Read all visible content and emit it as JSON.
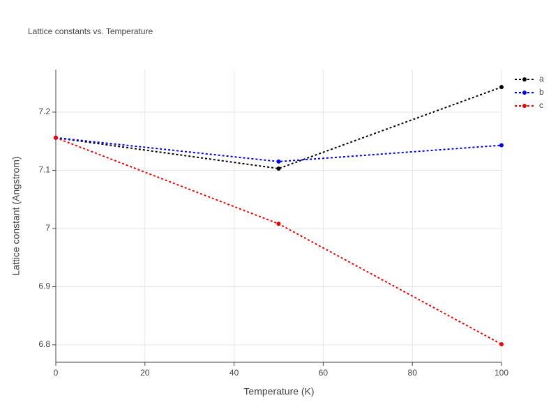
{
  "chart_data": {
    "type": "line",
    "title": "Lattice constants vs. Temperature",
    "x_label": "Temperature (K)",
    "y_label": "Lattice constant (Angstrom)",
    "x": [
      0,
      50,
      100
    ],
    "series": [
      {
        "name": "a",
        "color": "#000000",
        "values": [
          7.156,
          7.103,
          7.243
        ]
      },
      {
        "name": "b",
        "color": "#0000ee",
        "values": [
          7.156,
          7.115,
          7.143
        ]
      },
      {
        "name": "c",
        "color": "#ee0000",
        "values": [
          7.156,
          7.008,
          6.801
        ]
      }
    ],
    "xlim": [
      0,
      100
    ],
    "xticks": [
      0,
      20,
      40,
      60,
      80,
      100
    ],
    "ylim": [
      6.77,
      7.273
    ],
    "yticks": [
      6.8,
      6.9,
      7,
      7.1,
      7.2
    ],
    "grid": true,
    "line_style": "dotted",
    "legend": "right"
  }
}
